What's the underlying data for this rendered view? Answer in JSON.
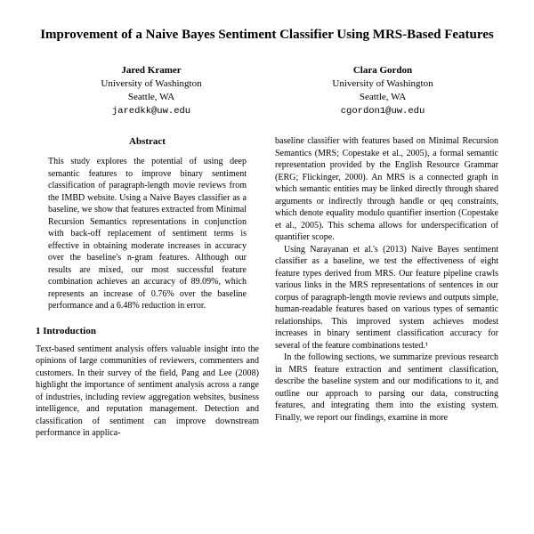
{
  "title": "Improvement of a Naive Bayes Sentiment Classifier Using MRS-Based Features",
  "authors": [
    {
      "name": "Jared Kramer",
      "affiliation": "University of Washington",
      "location": "Seattle, WA",
      "email": "jaredkk@uw.edu"
    },
    {
      "name": "Clara Gordon",
      "affiliation": "University of Washington",
      "location": "Seattle, WA",
      "email": "cgordon1@uw.edu"
    }
  ],
  "abstract_heading": "Abstract",
  "abstract": "This study explores the potential of using deep semantic features to improve binary sentiment classification of paragraph-length movie reviews from the IMBD website. Using a Naive Bayes classifier as a baseline, we show that features extracted from Minimal Recursion Semantics representations in conjunction with back-off replacement of sentiment terms is effective in obtaining moderate increases in accuracy over the baseline's n-gram features. Although our results are mixed, our most successful feature combination achieves an accuracy of 89.09%, which represents an increase of 0.76% over the baseline performance and a 6.48% reduction in error.",
  "section1_heading": "1   Introduction",
  "intro_p1": "Text-based sentiment analysis offers valuable insight into the opinions of large communities of reviewers, commenters and customers. In their survey of the field, Pang and Lee (2008) highlight the importance of sentiment analysis across a range of industries, including review aggregation websites, business intelligence, and reputation management. Detection and classification of sentiment can improve downstream performance in applica-",
  "right_p1": "baseline classifier with features based on Minimal Recursion Semantics (MRS; Copestake et al., 2005), a formal semantic representation provided by the English Resource Grammar (ERG; Flickinger, 2000). An MRS is a connected graph in which semantic entities may be linked directly through shared arguments or indirectly through handle or qeq constraints, which denote equality modulo quantifier insertion (Copestake et al., 2005). This schema allows for underspecification of quantifier scope.",
  "right_p2": "Using Narayanan et al.'s (2013) Naive Bayes sentiment classifier as a baseline, we test the effectiveness of eight feature types derived from MRS. Our feature pipeline crawls various links in the MRS representations of sentences in our corpus of paragraph-length movie reviews and outputs simple, human-readable features based on various types of semantic relationships. This improved system achieves modest increases in binary sentiment classification accuracy for several of the feature combinations tested.¹",
  "right_p3": "In the following sections, we summarize previous research in MRS feature extraction and sentiment classification, describe the baseline system and our modifications to it, and outline our approach to parsing our data, constructing features, and integrating them into the existing system. Finally, we report our findings, examine in more"
}
